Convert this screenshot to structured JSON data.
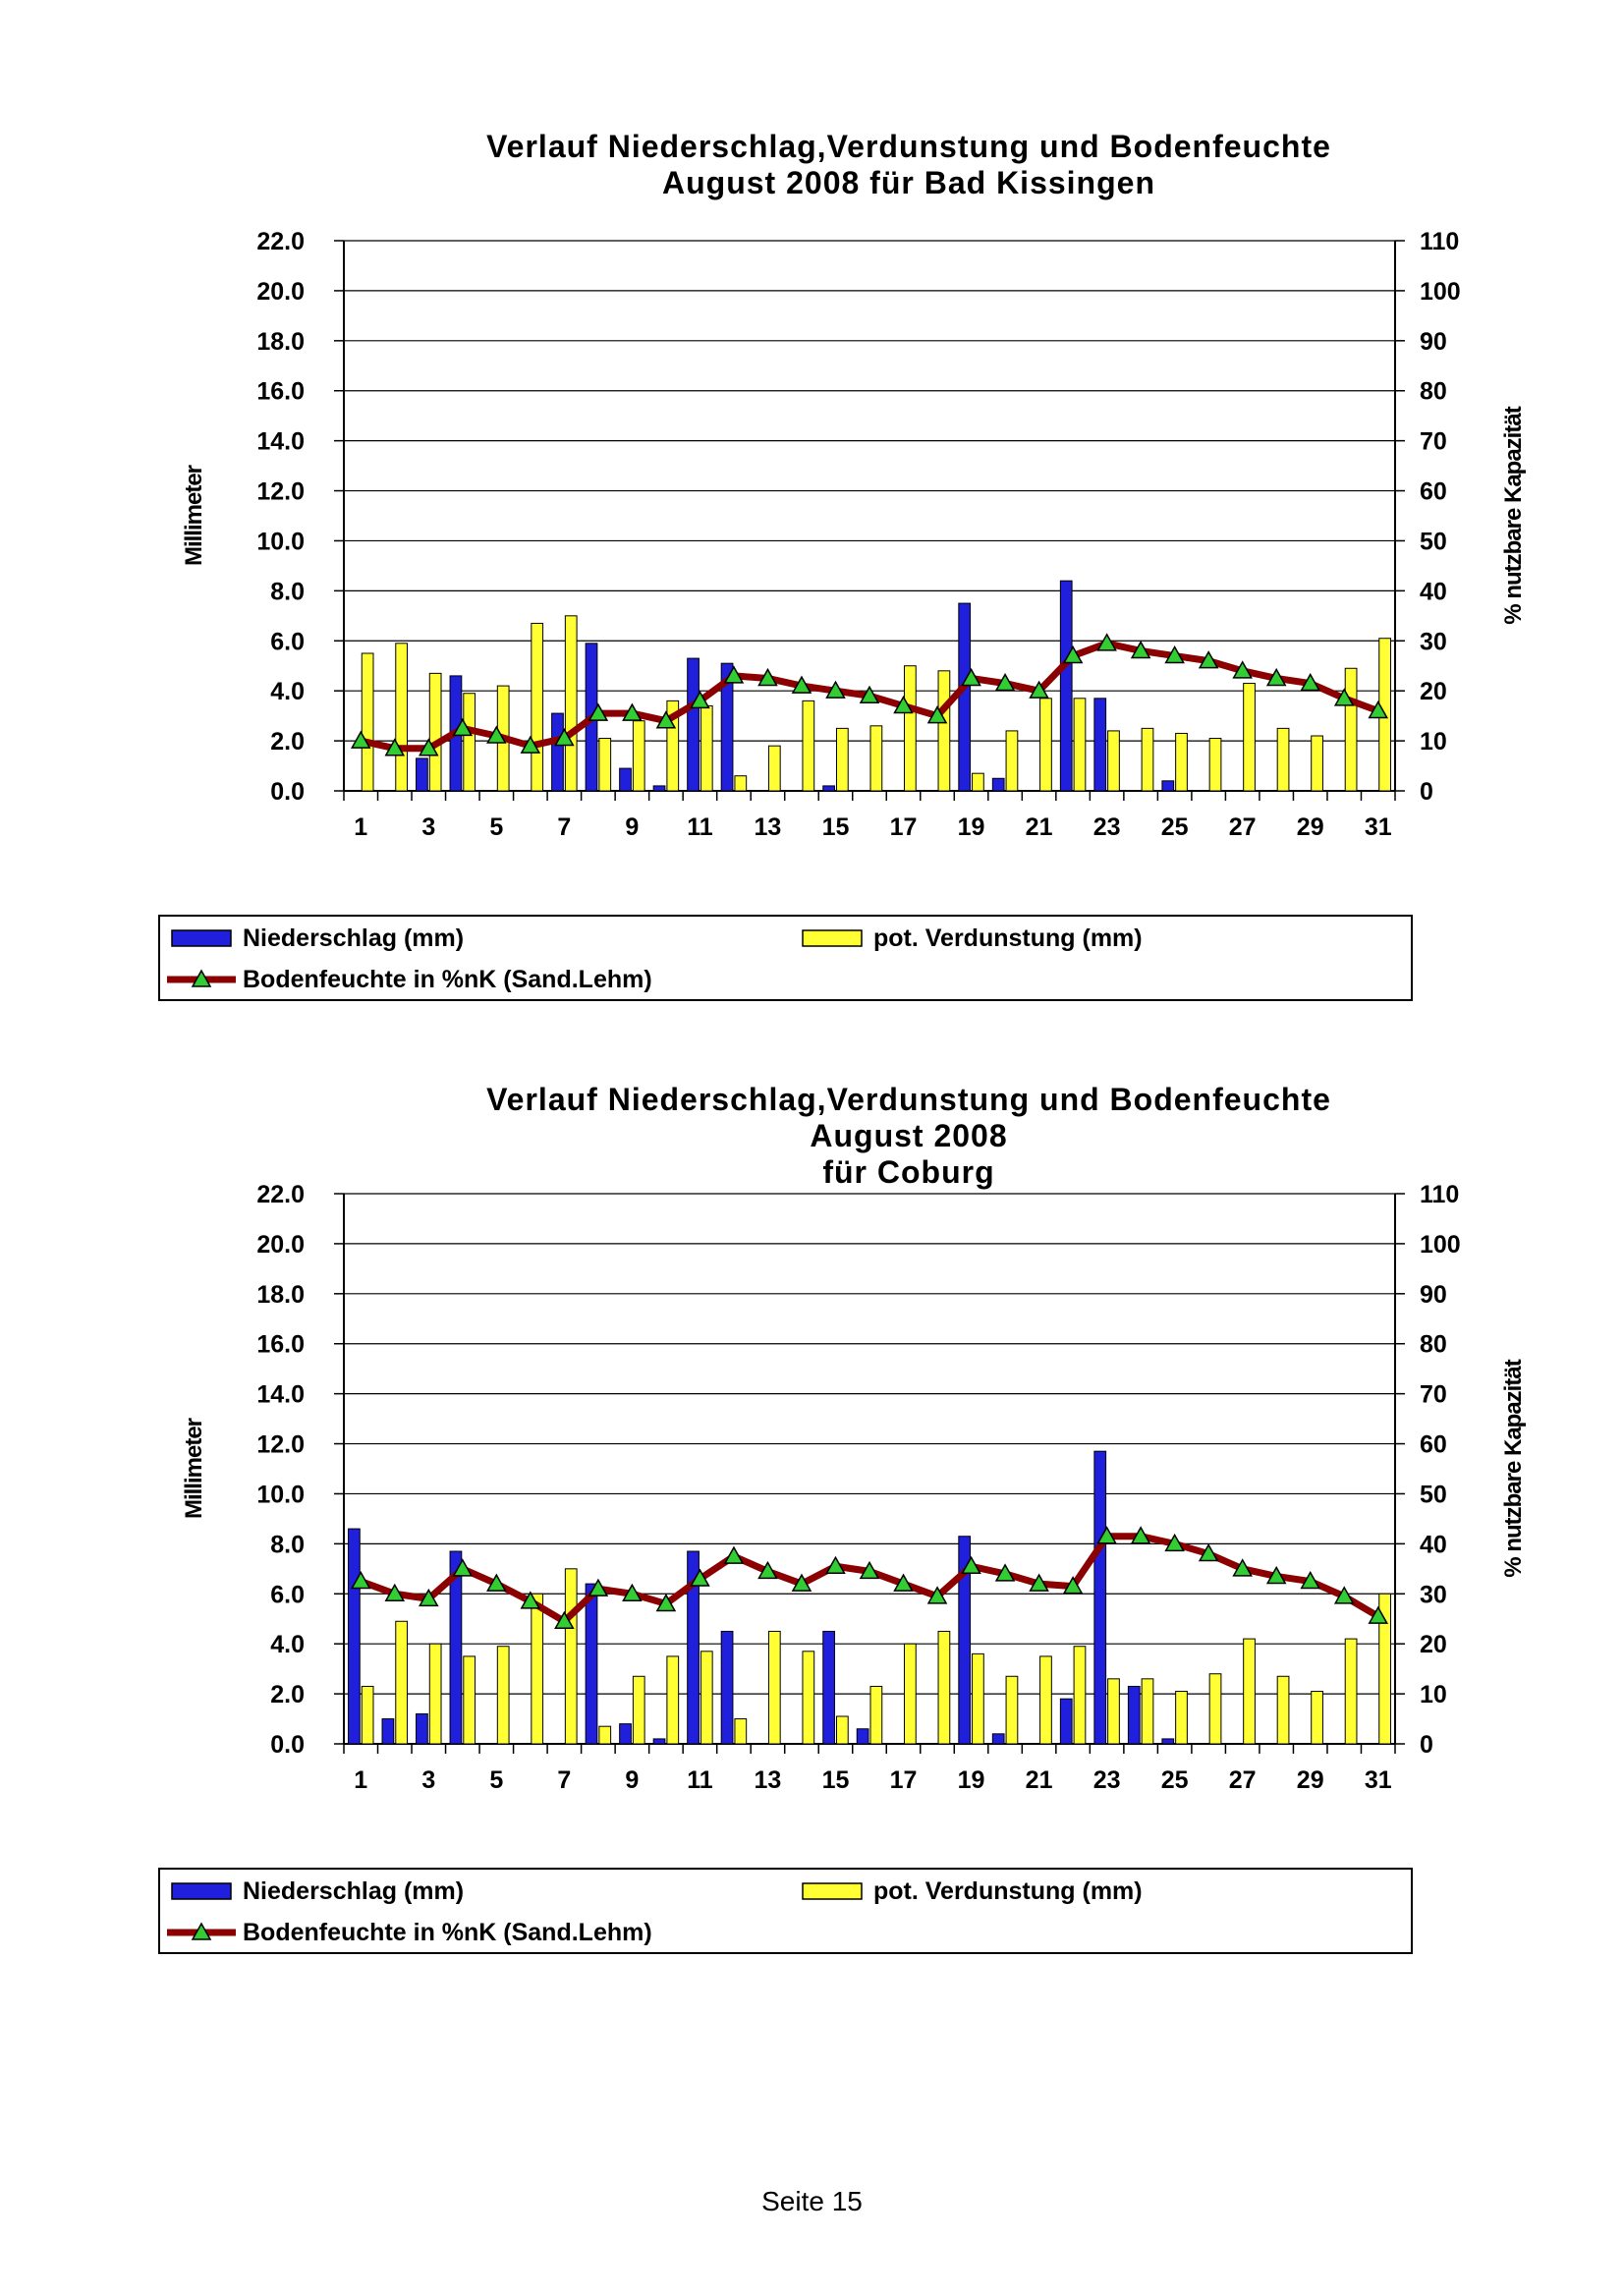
{
  "page": {
    "footer": "Seite 15"
  },
  "chart_data": [
    {
      "type": "bar",
      "title": "Verlauf Niederschlag,Verdunstung und Bodenfeuchte",
      "subtitle": "August  2008 für Bad Kissingen",
      "subtitle2": "",
      "ylabel": "Millimeter",
      "y2label": "% nutzbare Kapazität",
      "ylim": [
        0,
        22
      ],
      "y2lim": [
        0,
        110
      ],
      "yticks": [
        "0.0",
        "2.0",
        "4.0",
        "6.0",
        "8.0",
        "10.0",
        "12.0",
        "14.0",
        "16.0",
        "18.0",
        "20.0",
        "22.0"
      ],
      "y2ticks": [
        "0",
        "10",
        "20",
        "30",
        "40",
        "50",
        "60",
        "70",
        "80",
        "90",
        "100",
        "110"
      ],
      "xticks": [
        "1",
        "3",
        "5",
        "7",
        "9",
        "11",
        "13",
        "15",
        "17",
        "19",
        "21",
        "23",
        "25",
        "27",
        "29",
        "31"
      ],
      "grid": true,
      "legend_position": "bottom",
      "colors": {
        "niederschlag": "#1f1fdc",
        "verdunstung": "#ffff33",
        "bodenfeuchte": "#8b0000",
        "marker": "#33cc33"
      },
      "legend": {
        "niederschlag": "Niederschlag (mm)",
        "verdunstung": "pot. Verdunstung (mm)",
        "bodenfeuchte": "Bodenfeuchte in %nK (Sand.Lehm)"
      },
      "x": [
        1,
        2,
        3,
        4,
        5,
        6,
        7,
        8,
        9,
        10,
        11,
        12,
        13,
        14,
        15,
        16,
        17,
        18,
        19,
        20,
        21,
        22,
        23,
        24,
        25,
        26,
        27,
        28,
        29,
        30,
        31
      ],
      "series": [
        {
          "name": "Niederschlag (mm)",
          "axis": "left",
          "values": [
            0,
            0,
            1.3,
            4.6,
            0,
            0,
            3.1,
            5.9,
            0.9,
            0.2,
            5.3,
            5.1,
            0,
            0,
            0.2,
            0,
            0,
            0,
            7.5,
            0.5,
            0,
            8.4,
            3.7,
            0,
            0.4,
            0,
            0,
            0,
            0,
            0,
            0
          ]
        },
        {
          "name": "pot. Verdunstung (mm)",
          "axis": "left",
          "values": [
            5.5,
            5.9,
            4.7,
            3.9,
            4.2,
            6.7,
            7.0,
            2.1,
            2.8,
            3.6,
            3.4,
            0.6,
            1.8,
            3.6,
            2.5,
            2.6,
            5.0,
            4.8,
            0.7,
            2.4,
            3.7,
            3.7,
            2.4,
            2.5,
            2.3,
            2.1,
            4.3,
            2.5,
            2.2,
            4.9,
            6.1
          ]
        },
        {
          "name": "Bodenfeuchte in %nK (Sand.Lehm)",
          "axis": "right",
          "values": [
            10,
            8.5,
            8.5,
            12.5,
            11,
            9,
            10.5,
            15.5,
            15.5,
            14,
            18,
            23,
            22.5,
            21,
            20,
            19,
            17,
            15,
            22.5,
            21.5,
            20,
            27,
            29.5,
            28,
            27,
            26,
            24,
            22.5,
            21.5,
            18.5,
            16
          ]
        }
      ]
    },
    {
      "type": "bar",
      "title": "Verlauf Niederschlag,Verdunstung und Bodenfeuchte",
      "subtitle": "August 2008",
      "subtitle2": "für Coburg",
      "ylabel": "Millimeter",
      "y2label": "% nutzbare Kapazität",
      "ylim": [
        0,
        22
      ],
      "y2lim": [
        0,
        110
      ],
      "yticks": [
        "0.0",
        "2.0",
        "4.0",
        "6.0",
        "8.0",
        "10.0",
        "12.0",
        "14.0",
        "16.0",
        "18.0",
        "20.0",
        "22.0"
      ],
      "y2ticks": [
        "0",
        "10",
        "20",
        "30",
        "40",
        "50",
        "60",
        "70",
        "80",
        "90",
        "100",
        "110"
      ],
      "xticks": [
        "1",
        "3",
        "5",
        "7",
        "9",
        "11",
        "13",
        "15",
        "17",
        "19",
        "21",
        "23",
        "25",
        "27",
        "29",
        "31"
      ],
      "grid": true,
      "legend_position": "bottom",
      "colors": {
        "niederschlag": "#1f1fdc",
        "verdunstung": "#ffff33",
        "bodenfeuchte": "#8b0000",
        "marker": "#33cc33"
      },
      "legend": {
        "niederschlag": "Niederschlag (mm)",
        "verdunstung": "pot. Verdunstung (mm)",
        "bodenfeuchte": "Bodenfeuchte in %nK (Sand.Lehm)"
      },
      "x": [
        1,
        2,
        3,
        4,
        5,
        6,
        7,
        8,
        9,
        10,
        11,
        12,
        13,
        14,
        15,
        16,
        17,
        18,
        19,
        20,
        21,
        22,
        23,
        24,
        25,
        26,
        27,
        28,
        29,
        30,
        31
      ],
      "series": [
        {
          "name": "Niederschlag (mm)",
          "axis": "left",
          "values": [
            8.6,
            1.0,
            1.2,
            7.7,
            0,
            0,
            0,
            6.4,
            0.8,
            0.2,
            7.7,
            4.5,
            0,
            0,
            4.5,
            0.6,
            0,
            0,
            8.3,
            0.4,
            0,
            1.8,
            11.7,
            2.3,
            0.2,
            0,
            0,
            0,
            0,
            0,
            0
          ]
        },
        {
          "name": "pot. Verdunstung (mm)",
          "axis": "left",
          "values": [
            2.3,
            4.9,
            4.0,
            3.5,
            3.9,
            6.0,
            7.0,
            0.7,
            2.7,
            3.5,
            3.7,
            1.0,
            4.5,
            3.7,
            1.1,
            2.3,
            4.0,
            4.5,
            3.6,
            2.7,
            3.5,
            3.9,
            2.6,
            2.6,
            2.1,
            2.8,
            4.2,
            2.7,
            2.1,
            4.2,
            6.0
          ]
        },
        {
          "name": "Bodenfeuchte in %nK (Sand.Lehm)",
          "axis": "right",
          "values": [
            32.5,
            30,
            29,
            35,
            32,
            28.5,
            24.5,
            31,
            30,
            28,
            33,
            37.5,
            34.5,
            32,
            35.5,
            34.5,
            32,
            29.5,
            35.5,
            34,
            32,
            31.5,
            41.5,
            41.5,
            40,
            38,
            35,
            33.5,
            32.5,
            29.5,
            25.5
          ]
        }
      ]
    }
  ]
}
